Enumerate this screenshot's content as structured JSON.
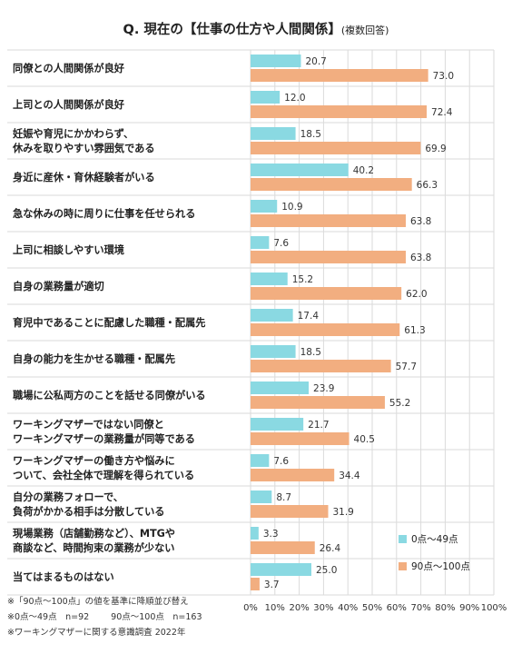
{
  "title": {
    "main": "Q. 現在の【仕事の仕方や人間関係】",
    "sub": "(複数回答)"
  },
  "colors": {
    "series1": "#8ad9e2",
    "series2": "#f2ae80",
    "grid": "#dadada"
  },
  "chart_data": {
    "type": "bar",
    "orientation": "horizontal",
    "categories": [
      "同僚との人間関係が良好",
      "上司との人間関係が良好",
      "妊娠や育児にかかわらず、\n休みを取りやすい雰囲気である",
      "身近に産休・育休経験者がいる",
      "急な休みの時に周りに仕事を任せられる",
      "上司に相談しやすい環境",
      "自身の業務量が適切",
      "育児中であることに配慮した職種・配属先",
      "自身の能力を生かせる職種・配属先",
      "職場に公私両方のことを話せる同僚がいる",
      "ワーキングマザーではない同僚と\nワーキングマザーの業務量が同等である",
      "ワーキングマザーの働き方や悩みに\nついて、会社全体で理解を得られている",
      "自分の業務フォローで、\n負荷がかかる相手は分散している",
      "現場業務（店舗勤務など）、MTGや\n商談など、時間拘束の業務が少ない",
      "当てはまるものはない"
    ],
    "series": [
      {
        "name": "0点～49点",
        "values": [
          20.7,
          12.0,
          18.5,
          40.2,
          10.9,
          7.6,
          15.2,
          17.4,
          18.5,
          23.9,
          21.7,
          7.6,
          8.7,
          3.3,
          25.0
        ]
      },
      {
        "name": "90点～100点",
        "values": [
          73.0,
          72.4,
          69.9,
          66.3,
          63.8,
          63.8,
          62.0,
          61.3,
          57.7,
          55.2,
          40.5,
          34.4,
          31.9,
          26.4,
          3.7
        ]
      }
    ],
    "xlim": [
      0,
      100
    ],
    "xticks": [
      "0%",
      "10%",
      "20%",
      "30%",
      "40%",
      "50%",
      "60%",
      "70%",
      "80%",
      "90%",
      "100%"
    ],
    "grid": true,
    "legend_position": "bottom-right"
  },
  "notes": {
    "line1": "※「90点～100点」の値を基準に降順並び替え",
    "line2a": "※0点～49点　n=92",
    "line2b": "90点～100点　n=163",
    "line3": "※ワーキングマザーに関する意識調査 2022年"
  }
}
